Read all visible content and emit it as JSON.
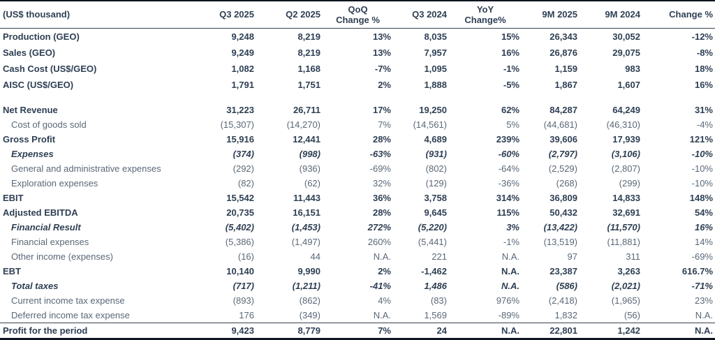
{
  "colors": {
    "text_strong": "#2e3f53",
    "text_regular": "#5a6877",
    "rule_thin": "#39434f",
    "rule_thick": "#0d1420",
    "background": "#ffffff"
  },
  "table": {
    "unit_header": "(US$ thousand)",
    "columns": [
      {
        "label": "Q3 2025",
        "lines": [
          "Q3 2025"
        ],
        "align": "right"
      },
      {
        "label": "Q2 2025",
        "lines": [
          "Q2 2025"
        ],
        "align": "right"
      },
      {
        "label": "QoQ Change %",
        "lines": [
          "QoQ",
          "Change %"
        ],
        "align": "center"
      },
      {
        "label": "Q3 2024",
        "lines": [
          "Q3 2024"
        ],
        "align": "right"
      },
      {
        "label": "YoY Change%",
        "lines": [
          "YoY",
          "Change%"
        ],
        "align": "center"
      },
      {
        "label": "9M 2025",
        "lines": [
          "9M 2025"
        ],
        "align": "right"
      },
      {
        "label": "9M 2024",
        "lines": [
          "9M 2024"
        ],
        "align": "right"
      },
      {
        "label": "Change %",
        "lines": [
          "Change %"
        ],
        "align": "right"
      }
    ],
    "rows": [
      {
        "label": "Production (GEO)",
        "style": "bold",
        "indent": false,
        "group": "metrics",
        "values": [
          "9,248",
          "8,219",
          "13%",
          "8,035",
          "15%",
          "26,343",
          "30,052",
          "-12%"
        ]
      },
      {
        "label": "Sales (GEO)",
        "style": "bold",
        "indent": false,
        "group": "metrics",
        "values": [
          "9,249",
          "8,219",
          "13%",
          "7,957",
          "16%",
          "26,876",
          "29,075",
          "-8%"
        ]
      },
      {
        "label": "Cash Cost (US$/GEO)",
        "style": "bold",
        "indent": false,
        "group": "metrics",
        "values": [
          "1,082",
          "1,168",
          "-7%",
          "1,095",
          "-1%",
          "1,159",
          "983",
          "18%"
        ]
      },
      {
        "label": "AISC (US$/GEO)",
        "style": "bold",
        "indent": false,
        "group": "metrics",
        "values": [
          "1,791",
          "1,751",
          "2%",
          "1,888",
          "-5%",
          "1,867",
          "1,607",
          "16%"
        ]
      },
      {
        "type": "spacer"
      },
      {
        "label": "Net Revenue",
        "style": "bold",
        "indent": false,
        "values": [
          "31,223",
          "26,711",
          "17%",
          "19,250",
          "62%",
          "84,287",
          "64,249",
          "31%"
        ]
      },
      {
        "label": "Cost of goods sold",
        "style": "regular",
        "indent": true,
        "values": [
          "(15,307)",
          "(14,270)",
          "7%",
          "(14,561)",
          "5%",
          "(44,681)",
          "(46,310)",
          "-4%"
        ]
      },
      {
        "label": "Gross Profit",
        "style": "bold",
        "indent": false,
        "values": [
          "15,916",
          "12,441",
          "28%",
          "4,689",
          "239%",
          "39,606",
          "17,939",
          "121%"
        ]
      },
      {
        "label": "Expenses",
        "style": "bold-italic",
        "indent": true,
        "values": [
          "(374)",
          "(998)",
          "-63%",
          "(931)",
          "-60%",
          "(2,797)",
          "(3,106)",
          "-10%"
        ]
      },
      {
        "label": "General and administrative expenses",
        "style": "regular",
        "indent": true,
        "values": [
          "(292)",
          "(936)",
          "-69%",
          "(802)",
          "-64%",
          "(2,529)",
          "(2,807)",
          "-10%"
        ]
      },
      {
        "label": "Exploration expenses",
        "style": "regular",
        "indent": true,
        "values": [
          "(82)",
          "(62)",
          "32%",
          "(129)",
          "-36%",
          "(268)",
          "(299)",
          "-10%"
        ]
      },
      {
        "label": "EBIT",
        "style": "bold",
        "indent": false,
        "values": [
          "15,542",
          "11,443",
          "36%",
          "3,758",
          "314%",
          "36,809",
          "14,833",
          "148%"
        ]
      },
      {
        "label": "Adjusted EBITDA",
        "style": "bold",
        "indent": false,
        "values": [
          "20,735",
          "16,151",
          "28%",
          "9,645",
          "115%",
          "50,432",
          "32,691",
          "54%"
        ]
      },
      {
        "label": "Financial Result",
        "style": "bold-italic",
        "indent": true,
        "values": [
          "(5,402)",
          "(1,453)",
          "272%",
          "(5,220)",
          "3%",
          "(13,422)",
          "(11,570)",
          "16%"
        ]
      },
      {
        "label": "Financial expenses",
        "style": "regular",
        "indent": true,
        "values": [
          "(5,386)",
          "(1,497)",
          "260%",
          "(5,441)",
          "-1%",
          "(13,519)",
          "(11,881)",
          "14%"
        ]
      },
      {
        "label": "Other income (expenses)",
        "style": "regular",
        "indent": true,
        "values": [
          "(16)",
          "44",
          "N.A.",
          "221",
          "N.A.",
          "97",
          "311",
          "-69%"
        ]
      },
      {
        "label": "EBT",
        "style": "bold",
        "indent": false,
        "values": [
          "10,140",
          "9,990",
          "2%",
          "-1,462",
          "N.A.",
          "23,387",
          "3,263",
          "616.7%"
        ]
      },
      {
        "label": "Total taxes",
        "style": "bold-italic",
        "indent": true,
        "values": [
          "(717)",
          "(1,211)",
          "-41%",
          "1,486",
          "N.A.",
          "(586)",
          "(2,021)",
          "-71%"
        ]
      },
      {
        "label": "Current income tax expense",
        "style": "regular",
        "indent": true,
        "values": [
          "(893)",
          "(862)",
          "4%",
          "(83)",
          "976%",
          "(2,418)",
          "(1,965)",
          "23%"
        ]
      },
      {
        "label": "Deferred income tax expense",
        "style": "regular",
        "indent": true,
        "values": [
          "176",
          "(349)",
          "N.A.",
          "1,569",
          "-89%",
          "1,832",
          "(56)",
          "N.A."
        ]
      },
      {
        "label": "Profit for the period",
        "style": "bold",
        "indent": false,
        "total": true,
        "values": [
          "9,423",
          "8,779",
          "7%",
          "24",
          "N.A.",
          "22,801",
          "1,242",
          "N.A."
        ]
      }
    ]
  }
}
